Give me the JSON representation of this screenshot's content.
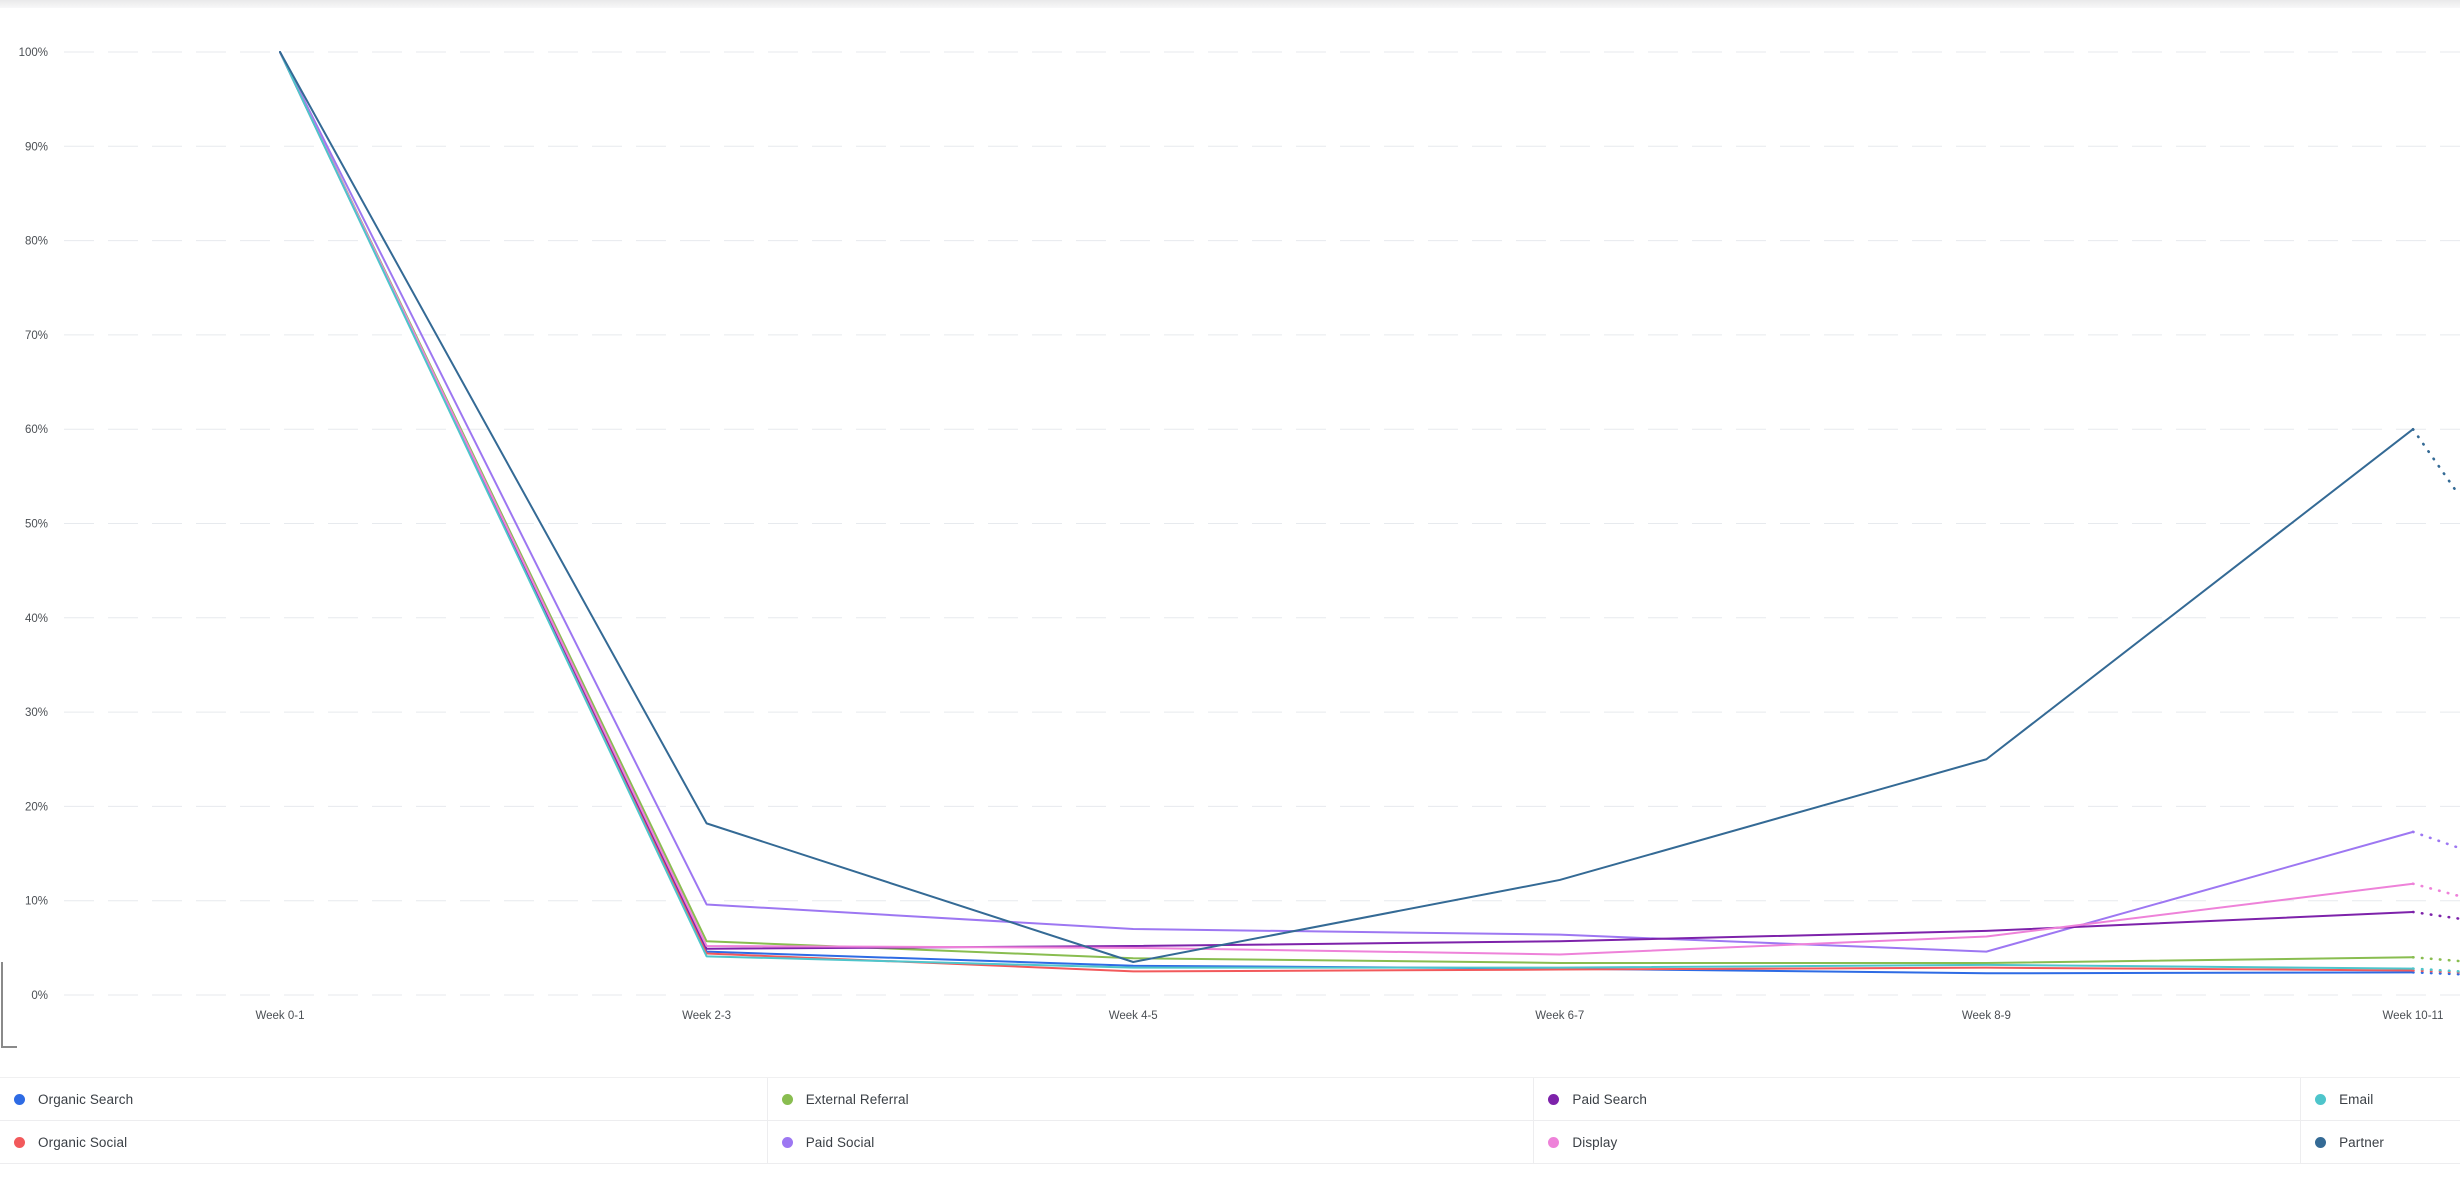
{
  "chart_data": {
    "type": "line",
    "title": "",
    "xlabel": "",
    "ylabel": "",
    "ylim": [
      0,
      100
    ],
    "grid": true,
    "gridline_color": "#e7eaee",
    "axis_label_color": "#4b4f54",
    "legend_position": "bottom",
    "projection_style": "dotted",
    "y_tick_labels": [
      "0%",
      "10%",
      "20%",
      "30%",
      "40%",
      "50%",
      "60%",
      "70%",
      "80%",
      "90%",
      "100%"
    ],
    "categories": [
      "Week 0-1",
      "Week 2-3",
      "Week 4-5",
      "Week 6-7",
      "Week 8-9",
      "Week 10-11"
    ],
    "series": [
      {
        "name": "Organic Search",
        "color": "#2e6be4",
        "values": [
          100,
          4.6,
          3.1,
          2.8,
          2.3,
          2.4
        ],
        "projection": 2.2
      },
      {
        "name": "Organic Social",
        "color": "#f2595b",
        "values": [
          100,
          4.4,
          2.5,
          2.7,
          2.9,
          2.6
        ],
        "projection": 2.4
      },
      {
        "name": "External Referral",
        "color": "#89bd50",
        "values": [
          100,
          5.7,
          3.9,
          3.4,
          3.4,
          4.0
        ],
        "projection": 3.6
      },
      {
        "name": "Paid Social",
        "color": "#9d77f2",
        "values": [
          100,
          9.6,
          7.0,
          6.4,
          4.6,
          17.3
        ],
        "projection": 15.6
      },
      {
        "name": "Paid Search",
        "color": "#7d22aa",
        "values": [
          100,
          4.9,
          5.2,
          5.7,
          6.8,
          8.8
        ],
        "projection": 8.1
      },
      {
        "name": "Display",
        "color": "#ee82d9",
        "values": [
          100,
          5.2,
          5.0,
          4.3,
          6.2,
          11.8
        ],
        "projection": 10.5
      },
      {
        "name": "Email",
        "color": "#4ec5cb",
        "values": [
          100,
          4.1,
          2.9,
          2.9,
          3.2,
          2.8
        ],
        "projection": 2.5
      },
      {
        "name": "Partner",
        "color": "#346a95",
        "values": [
          100,
          18.2,
          3.5,
          12.2,
          25.0,
          60.0
        ],
        "projection": 53.0
      }
    ]
  }
}
